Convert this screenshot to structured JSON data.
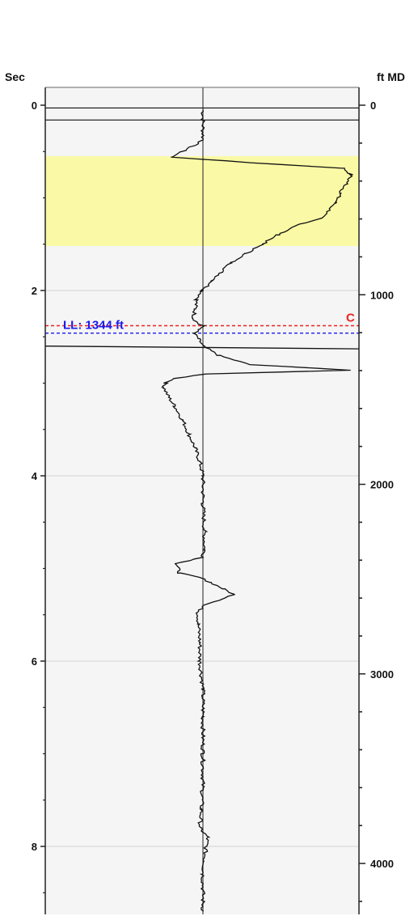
{
  "chart_data": {
    "type": "line",
    "left_axis": {
      "label": "Sec",
      "ticks": [
        "0",
        "2",
        "4",
        "6",
        "8"
      ],
      "ylim": [
        0,
        8.7
      ]
    },
    "right_axis": {
      "label": "ft MD",
      "ticks": [
        "0",
        "1000",
        "2000",
        "3000",
        "4000"
      ]
    },
    "x_center": 0,
    "highlight": {
      "y_from": 0.55,
      "y_to": 1.52,
      "color": "#fafaa6"
    },
    "markers": [
      {
        "y": 0.03,
        "color": "#111111",
        "style": "solid",
        "label": "",
        "label_color": ""
      },
      {
        "y": 0.16,
        "color": "#111111",
        "style": "solid",
        "label": "",
        "label_color": ""
      },
      {
        "y": 2.38,
        "color": "#ee2222",
        "style": "dashed",
        "label": "C",
        "label_color": "#ee2222"
      },
      {
        "y": 2.46,
        "color": "#1a1aee",
        "style": "dashed",
        "label": "LL: 1344 ft",
        "label_color": "#1a1aee"
      }
    ],
    "series": [
      {
        "trace": [
          [
            0.05,
            0.0
          ],
          [
            0.38,
            0.0
          ],
          [
            0.56,
            -0.2
          ],
          [
            0.62,
            0.3
          ],
          [
            0.68,
            0.9
          ],
          [
            0.75,
            0.95
          ],
          [
            0.85,
            0.92
          ],
          [
            0.95,
            0.88
          ],
          [
            1.05,
            0.85
          ],
          [
            1.15,
            0.8
          ],
          [
            1.22,
            0.75
          ],
          [
            1.3,
            0.6
          ],
          [
            1.4,
            0.48
          ],
          [
            1.5,
            0.38
          ],
          [
            1.6,
            0.28
          ],
          [
            1.7,
            0.18
          ],
          [
            1.8,
            0.12
          ],
          [
            1.9,
            0.06
          ],
          [
            2.0,
            0.0
          ],
          [
            2.1,
            -0.04
          ],
          [
            2.2,
            -0.05
          ],
          [
            2.3,
            -0.06
          ],
          [
            2.36,
            -0.03
          ],
          [
            2.38,
            0.0
          ],
          [
            2.42,
            -0.02
          ],
          [
            2.46,
            -0.06
          ],
          [
            2.52,
            -0.03
          ],
          [
            2.6,
            0.0
          ],
          [
            2.7,
            0.1
          ],
          [
            2.8,
            0.3
          ],
          [
            2.86,
            0.95
          ],
          [
            2.9,
            0.02
          ],
          [
            2.95,
            -0.18
          ],
          [
            3.0,
            -0.24
          ],
          [
            3.05,
            -0.25
          ],
          [
            3.15,
            -0.22
          ],
          [
            3.25,
            -0.18
          ],
          [
            3.4,
            -0.13
          ],
          [
            3.55,
            -0.09
          ],
          [
            3.7,
            -0.05
          ],
          [
            3.85,
            -0.02
          ],
          [
            4.0,
            0.0
          ],
          [
            4.3,
            0.0
          ],
          [
            4.6,
            0.01
          ],
          [
            4.8,
            0.01
          ],
          [
            4.88,
            0.0
          ],
          [
            4.95,
            -0.17
          ],
          [
            5.05,
            -0.15
          ],
          [
            5.1,
            -0.02
          ],
          [
            5.15,
            0.05
          ],
          [
            5.22,
            0.13
          ],
          [
            5.28,
            0.2
          ],
          [
            5.34,
            0.12
          ],
          [
            5.4,
            0.0
          ],
          [
            5.48,
            -0.03
          ],
          [
            5.6,
            -0.03
          ],
          [
            5.8,
            -0.02
          ],
          [
            6.0,
            -0.02
          ],
          [
            6.3,
            0.0
          ],
          [
            6.6,
            0.0
          ],
          [
            7.0,
            0.0
          ],
          [
            7.3,
            0.0
          ],
          [
            7.6,
            -0.01
          ],
          [
            7.8,
            -0.02
          ],
          [
            7.9,
            0.03
          ],
          [
            8.0,
            0.02
          ],
          [
            8.3,
            0.0
          ],
          [
            8.7,
            0.0
          ]
        ],
        "color": "#111111"
      }
    ],
    "grid": true
  }
}
